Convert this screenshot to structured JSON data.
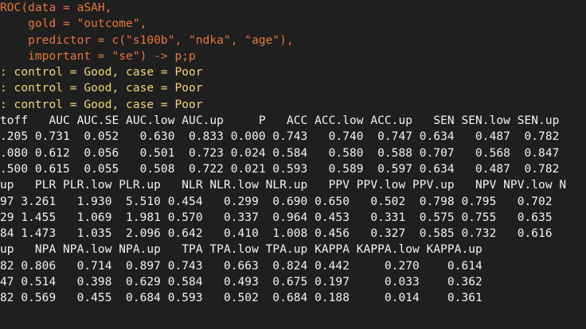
{
  "console": {
    "command_lines": [
      "ROC(data = aSAH,",
      "    gold = \"outcome\",",
      "    predictor = c(\"s100b\", \"ndka\", \"age\"),",
      "    important = \"se\") -> p;p"
    ],
    "message_lines": [
      ": control = Good, case = Poor",
      ": control = Good, case = Poor",
      ": control = Good, case = Poor"
    ],
    "output_lines": [
      "toff   AUC AUC.SE AUC.low AUC.up     P   ACC ACC.low ACC.up   SEN SEN.low SEN.up",
      ".205 0.731  0.052   0.630  0.833 0.000 0.743   0.740  0.747 0.634   0.487  0.782",
      ".080 0.612  0.056   0.501  0.723 0.024 0.584   0.580  0.588 0.707   0.568  0.847",
      ".500 0.615  0.055   0.508  0.722 0.021 0.593   0.589  0.597 0.634   0.487  0.782",
      "up   PLR PLR.low PLR.up   NLR NLR.low NLR.up   PPV PPV.low PPV.up   NPV NPV.low N",
      "97 3.261   1.930  5.510 0.454   0.299  0.690 0.650   0.502  0.798 0.795   0.702",
      "29 1.455   1.069  1.981 0.570   0.337  0.964 0.453   0.331  0.575 0.755   0.635",
      "84 1.473   1.035  2.096 0.642   0.410  1.008 0.456   0.327  0.585 0.732   0.616",
      "up   NPA NPA.low NPA.up   TPA TPA.low TPA.up KAPPA KAPPA.low KAPPA.up",
      "82 0.806   0.714  0.897 0.743   0.663  0.824 0.442     0.270    0.614",
      "47 0.514   0.398  0.629 0.584   0.493  0.675 0.197     0.033    0.362",
      "82 0.569   0.455  0.684 0.593   0.502  0.684 0.188     0.014    0.361"
    ],
    "colors": {
      "background": "#1f1f1f",
      "command": "#e3763f",
      "message": "#f5d37a",
      "output": "#f2f2f2"
    }
  }
}
